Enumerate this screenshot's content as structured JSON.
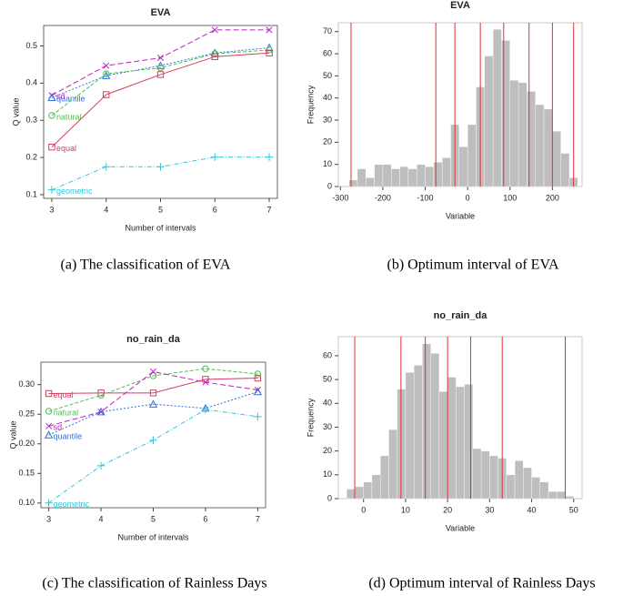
{
  "chart_data": [
    {
      "type": "line",
      "title": "EVA",
      "caption": "(a) The classification of EVA",
      "x_label": "Number of intervals",
      "y_label": "Q value",
      "x": [
        3,
        4,
        5,
        6,
        7
      ],
      "xlim": [
        2.85,
        7.15
      ],
      "xticks": [
        3,
        4,
        5,
        6,
        7
      ],
      "ylim": [
        0.09,
        0.555
      ],
      "yticks": [
        0.1,
        0.2,
        0.3,
        0.4,
        0.5
      ],
      "series": [
        {
          "name": "sd",
          "color": "#c020c0",
          "marker": "x",
          "dash": "6 3",
          "values": [
            0.367,
            0.447,
            0.468,
            0.543,
            0.543
          ]
        },
        {
          "name": "quantile",
          "color": "#3070e0",
          "marker": "triangle",
          "dash": "2 2",
          "values": [
            0.361,
            0.42,
            0.447,
            0.481,
            0.495
          ]
        },
        {
          "name": "natural",
          "color": "#50c050",
          "marker": "circle",
          "dash": "4 2",
          "values": [
            0.313,
            0.425,
            0.441,
            0.479,
            0.489
          ]
        },
        {
          "name": "equal",
          "color": "#d04060",
          "marker": "square",
          "dash": "",
          "values": [
            0.228,
            0.369,
            0.423,
            0.471,
            0.481
          ]
        },
        {
          "name": "geometric",
          "color": "#30c8d8",
          "marker": "plus",
          "dash": "5 2 1 2",
          "values": [
            0.113,
            0.175,
            0.175,
            0.201,
            0.201
          ]
        }
      ]
    },
    {
      "type": "histogram",
      "title": "EVA",
      "caption": "(b) Optimum interval of EVA",
      "x_label": "Variable",
      "y_label": "Frequency",
      "color": "#bebebe",
      "break_color": "#e03030",
      "bins": [
        -280,
        -260,
        -240,
        -220,
        -200,
        -180,
        -160,
        -140,
        -120,
        -100,
        -80,
        -60,
        -40,
        -20,
        0,
        20,
        40,
        60,
        80,
        100,
        120,
        140,
        160,
        180,
        200,
        220,
        240,
        260
      ],
      "values": [
        3,
        8,
        4,
        10,
        10,
        8,
        9,
        8,
        10,
        9,
        11,
        13,
        28,
        18,
        28,
        45,
        59,
        71,
        66,
        48,
        47,
        43,
        37,
        35,
        25,
        15,
        4
      ],
      "breaks": [
        -275,
        -75,
        -30,
        30,
        85,
        145,
        200,
        250
      ],
      "xlim": [
        -305,
        270
      ],
      "xticks": [
        -300,
        -200,
        -100,
        0,
        100,
        200
      ],
      "ylim": [
        0,
        74
      ],
      "yticks": [
        0,
        10,
        20,
        30,
        40,
        50,
        60,
        70
      ]
    },
    {
      "type": "line",
      "title": "no_rain_da",
      "caption": "(c) The classification of Rainless Days",
      "x_label": "Number of intervals",
      "y_label": "Q value",
      "x": [
        3,
        4,
        5,
        6,
        7
      ],
      "xlim": [
        2.85,
        7.15
      ],
      "xticks": [
        3,
        4,
        5,
        6,
        7
      ],
      "ylim": [
        0.092,
        0.338
      ],
      "yticks": [
        {
          "value": 0.1,
          "label": "0.10"
        },
        {
          "value": 0.15,
          "label": "0.15"
        },
        {
          "value": 0.2,
          "label": "0.20"
        },
        {
          "value": 0.25,
          "label": "0.25"
        },
        {
          "value": 0.3,
          "label": "0.30"
        }
      ],
      "series": [
        {
          "name": "equal",
          "color": "#d04060",
          "marker": "square",
          "dash": "",
          "values": [
            0.285,
            0.286,
            0.286,
            0.309,
            0.311
          ]
        },
        {
          "name": "natural",
          "color": "#50c050",
          "marker": "circle",
          "dash": "4 2",
          "values": [
            0.255,
            0.282,
            0.315,
            0.327,
            0.318
          ]
        },
        {
          "name": "sd",
          "color": "#c020c0",
          "marker": "x",
          "dash": "6 3",
          "values": [
            0.23,
            0.254,
            0.322,
            0.304,
            0.291
          ]
        },
        {
          "name": "quantile",
          "color": "#3070e0",
          "marker": "triangle",
          "dash": "2 2",
          "values": [
            0.215,
            0.254,
            0.267,
            0.26,
            0.288
          ]
        },
        {
          "name": "geometric",
          "color": "#30c8d8",
          "marker": "plus",
          "dash": "5 2 1 2",
          "values": [
            0.1,
            0.163,
            0.206,
            0.258,
            0.246
          ]
        }
      ]
    },
    {
      "type": "histogram",
      "title": "no_rain_da",
      "caption": "(d) Optimum interval of Rainless Days",
      "x_label": "Variable",
      "y_label": "Frequency",
      "color": "#bebebe",
      "break_color": "#e03030",
      "bins": [
        -4,
        -2,
        0,
        2,
        4,
        6,
        8,
        10,
        12,
        14,
        16,
        18,
        20,
        22,
        24,
        26,
        28,
        30,
        32,
        34,
        36,
        38,
        40,
        42,
        44,
        46,
        48,
        50
      ],
      "values": [
        4,
        5,
        7,
        10,
        18,
        29,
        46,
        53,
        56,
        65,
        61,
        45,
        51,
        47,
        48,
        21,
        20,
        18,
        17,
        10,
        16,
        13,
        9,
        7,
        3,
        3,
        1
      ],
      "breaks": [
        -2.1,
        8.9,
        14.7,
        20,
        25.5,
        33,
        48
      ],
      "xlim": [
        -6,
        52
      ],
      "xticks": [
        0,
        10,
        20,
        30,
        40,
        50
      ],
      "ylim": [
        0,
        68
      ],
      "yticks": [
        0,
        10,
        20,
        30,
        40,
        50,
        60
      ]
    }
  ]
}
